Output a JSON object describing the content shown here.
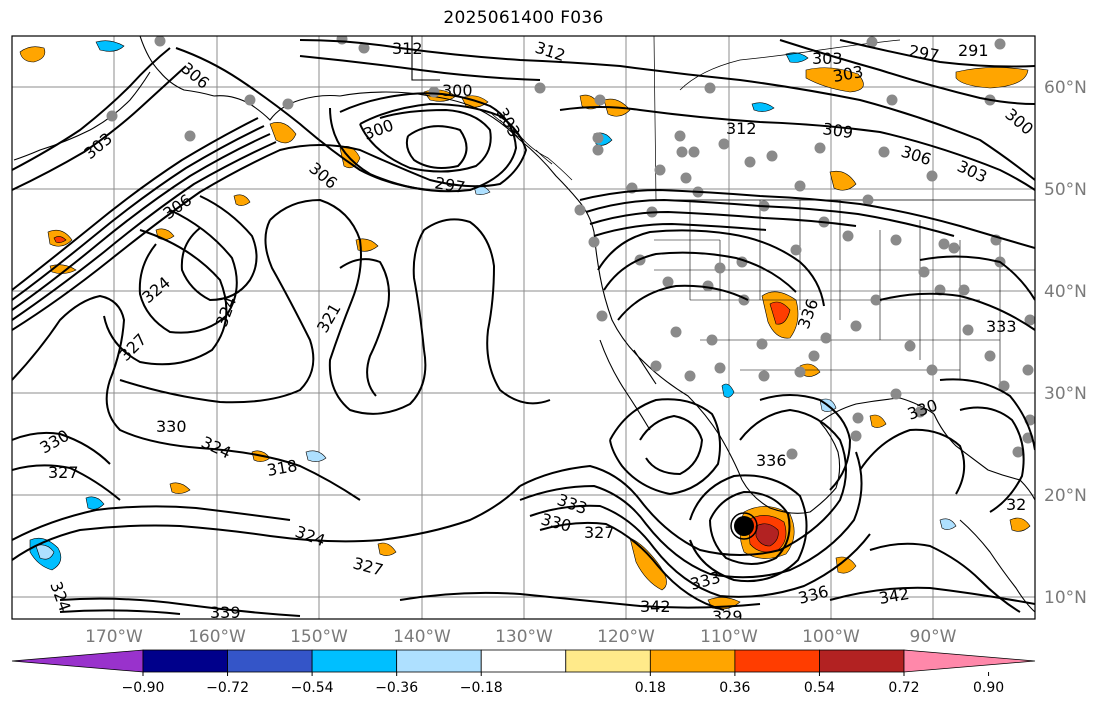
{
  "title": "2025061400 F036",
  "lat_labels": [
    "60°N",
    "50°N",
    "40°N",
    "30°N",
    "20°N",
    "10°N"
  ],
  "lon_labels": [
    "170°W",
    "160°W",
    "150°W",
    "140°W",
    "130°W",
    "120°W",
    "110°W",
    "100°W",
    "90°W"
  ],
  "colorbar": {
    "ticks": [
      "−0.90",
      "−0.72",
      "−0.54",
      "−0.36",
      "−0.18",
      "0.18",
      "0.36",
      "0.54",
      "0.72",
      "0.90"
    ],
    "colors": [
      "#9932cc",
      "#00008b",
      "#3455c8",
      "#00bfff",
      "#aee0ff",
      "#ffffff",
      "#ffea8a",
      "#ffa500",
      "#ff3d00",
      "#b22222",
      "#ff88aa"
    ]
  },
  "contour_labels": [
    {
      "text": "312"
    },
    {
      "text": "312"
    },
    {
      "text": "306"
    },
    {
      "text": "303"
    },
    {
      "text": "300"
    },
    {
      "text": "300"
    },
    {
      "text": "297"
    },
    {
      "text": "306"
    },
    {
      "text": "306"
    },
    {
      "text": "303"
    },
    {
      "text": "312"
    },
    {
      "text": "309"
    },
    {
      "text": "306"
    },
    {
      "text": "303"
    },
    {
      "text": "300"
    },
    {
      "text": "303"
    },
    {
      "text": "303"
    },
    {
      "text": "297"
    },
    {
      "text": "291"
    },
    {
      "text": "324"
    },
    {
      "text": "324"
    },
    {
      "text": "327"
    },
    {
      "text": "321"
    },
    {
      "text": "330"
    },
    {
      "text": "330"
    },
    {
      "text": "327"
    },
    {
      "text": "324"
    },
    {
      "text": "318"
    },
    {
      "text": "324"
    },
    {
      "text": "327"
    },
    {
      "text": "333"
    },
    {
      "text": "330"
    },
    {
      "text": "327"
    },
    {
      "text": "336"
    },
    {
      "text": "333"
    },
    {
      "text": "342"
    },
    {
      "text": "329"
    },
    {
      "text": "336"
    },
    {
      "text": "342"
    },
    {
      "text": "333"
    },
    {
      "text": "336"
    },
    {
      "text": "330"
    },
    {
      "text": "32"
    },
    {
      "text": "324"
    },
    {
      "text": "339"
    }
  ],
  "colors": {
    "contour": "#000000",
    "grid": "#8c8c8c",
    "tick": "#7a7a7a",
    "station": "#8a8a8a",
    "coast": "#000000"
  }
}
